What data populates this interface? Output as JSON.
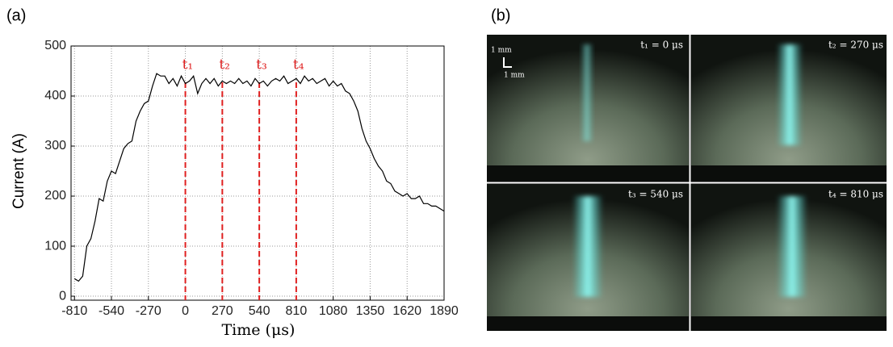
{
  "panel_labels": [
    "(a)",
    "(b)"
  ],
  "chart_data": {
    "type": "line",
    "xlabel": "Time (μs)",
    "ylabel": "Current (A)",
    "xlim": [
      -835,
      1890
    ],
    "ylim": [
      -8,
      500
    ],
    "xticks": [
      -810,
      -540,
      -270,
      0,
      270,
      540,
      810,
      1080,
      1350,
      1620,
      1890
    ],
    "yticks": [
      0,
      100,
      200,
      300,
      400,
      500
    ],
    "grid": true,
    "x": [
      -810,
      -780,
      -750,
      -720,
      -690,
      -660,
      -630,
      -600,
      -570,
      -540,
      -510,
      -480,
      -450,
      -420,
      -390,
      -360,
      -330,
      -300,
      -270,
      -240,
      -210,
      -180,
      -150,
      -120,
      -90,
      -60,
      -30,
      0,
      30,
      60,
      90,
      120,
      150,
      180,
      210,
      240,
      270,
      300,
      330,
      360,
      390,
      420,
      450,
      480,
      510,
      540,
      570,
      600,
      630,
      660,
      690,
      720,
      750,
      780,
      810,
      840,
      870,
      900,
      930,
      960,
      990,
      1020,
      1050,
      1080,
      1110,
      1140,
      1170,
      1200,
      1230,
      1260,
      1290,
      1320,
      1350,
      1380,
      1410,
      1440,
      1470,
      1500,
      1530,
      1560,
      1590,
      1620,
      1650,
      1680,
      1710,
      1740,
      1770,
      1800,
      1830,
      1860,
      1890
    ],
    "series": [
      {
        "color": "#000000",
        "values": [
          35,
          30,
          40,
          100,
          115,
          150,
          195,
          190,
          230,
          250,
          245,
          270,
          295,
          305,
          310,
          350,
          370,
          385,
          390,
          420,
          445,
          440,
          440,
          425,
          435,
          420,
          440,
          425,
          430,
          440,
          405,
          425,
          435,
          425,
          435,
          420,
          430,
          425,
          430,
          425,
          435,
          425,
          430,
          420,
          435,
          425,
          430,
          420,
          430,
          435,
          430,
          440,
          425,
          430,
          435,
          425,
          440,
          430,
          435,
          425,
          430,
          435,
          420,
          430,
          420,
          425,
          410,
          405,
          390,
          370,
          335,
          310,
          295,
          275,
          260,
          250,
          230,
          225,
          210,
          205,
          200,
          205,
          195,
          195,
          200,
          185,
          185,
          180,
          180,
          175,
          170
        ]
      }
    ],
    "markers": {
      "color": "#e02020",
      "x": [
        0,
        270,
        540,
        810
      ],
      "labels": [
        "t₁",
        "t₂",
        "t₃",
        "t₄"
      ]
    }
  },
  "photo": {
    "frame_labels": [
      "t₁ =   0 μs",
      "t₂ = 270 μs",
      "t₃ = 540 μs",
      "t₄ = 810 μs"
    ],
    "scale_labels": [
      "1 mm",
      "1 mm"
    ]
  }
}
